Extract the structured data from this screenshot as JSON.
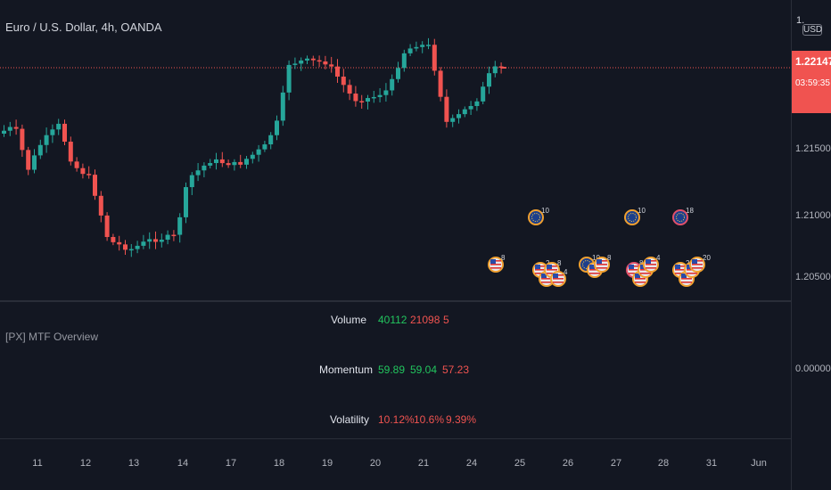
{
  "symbol_title": "Euro / U.S. Dollar, 4h, OANDA",
  "indicator_title": "[PX] MTF Overview",
  "currency": "USD",
  "axis_top_label": "1.",
  "price_badge": {
    "price": "1.22147",
    "countdown": "03:59:35"
  },
  "price_axis": [
    "1.21500",
    "1.21000",
    "1.20500"
  ],
  "indicator_axis": [
    "0.00000"
  ],
  "time_axis": [
    "11",
    "12",
    "13",
    "14",
    "17",
    "18",
    "19",
    "20",
    "21",
    "24",
    "25",
    "26",
    "27",
    "28",
    "31",
    "Jun"
  ],
  "mtf_table": {
    "rows": [
      {
        "label": "Volume",
        "values": [
          "40112",
          "21098",
          "5"
        ]
      },
      {
        "label": "Momentum",
        "values": [
          "59.89",
          "59.04",
          "57.23"
        ]
      },
      {
        "label": "Volatility",
        "values": [
          "10.12%",
          "10.6%",
          "9.39%"
        ]
      }
    ]
  },
  "event_markers": [
    {
      "group": "g1",
      "counts": [
        "8"
      ]
    },
    {
      "group": "g2",
      "counts": [
        "10",
        "2",
        "8",
        "4"
      ]
    },
    {
      "group": "g3",
      "counts": [
        "10",
        "4",
        "8"
      ]
    },
    {
      "group": "g4",
      "counts": [
        "10",
        "8",
        "7",
        "4"
      ]
    },
    {
      "group": "g5",
      "counts": [
        "18",
        "2",
        "2",
        "20"
      ]
    }
  ],
  "colors": {
    "background": "#131722",
    "bull": "#26a69a",
    "bear": "#f05350",
    "grid": "#1e222d",
    "separator": "#2a2e39"
  }
}
